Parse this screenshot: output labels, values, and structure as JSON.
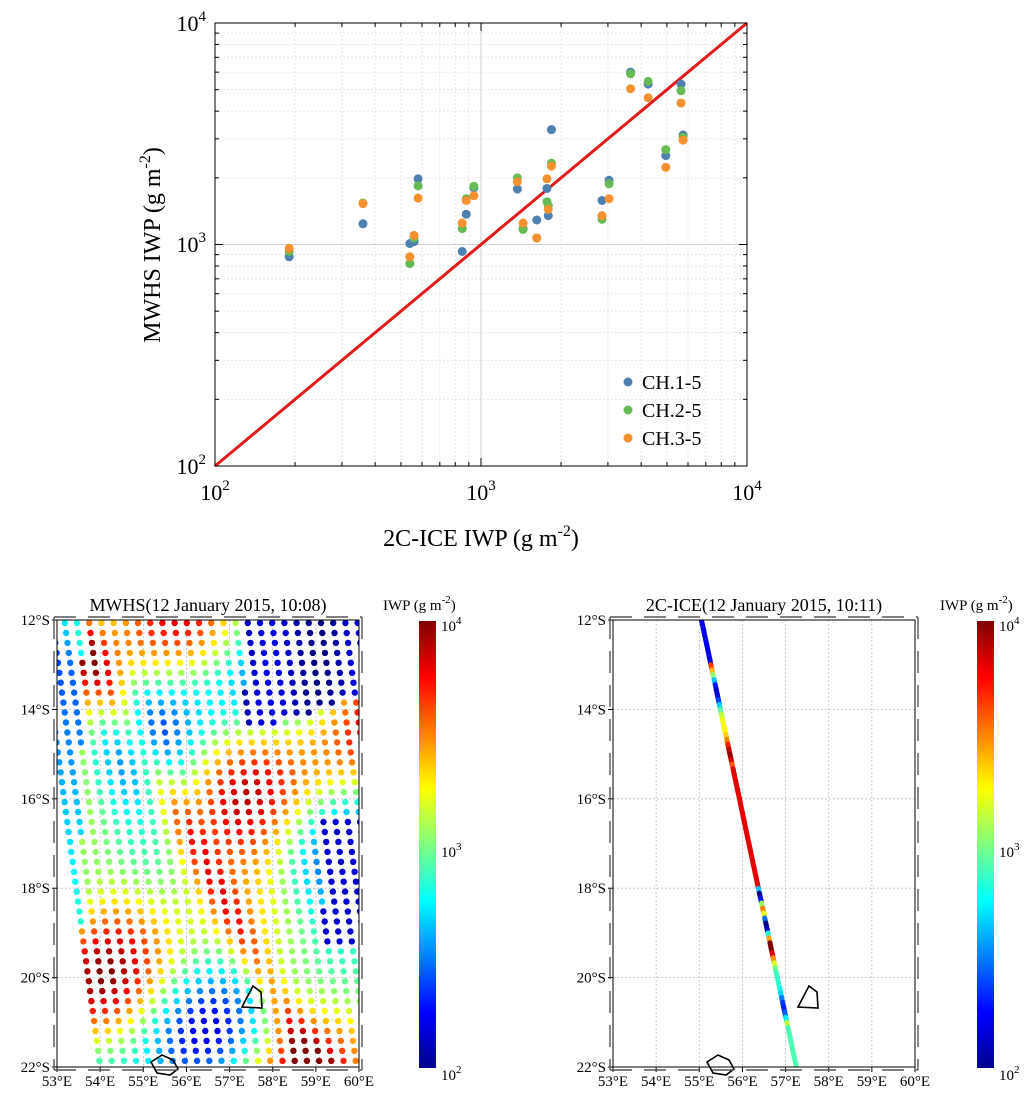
{
  "chart_data": [
    {
      "type": "scatter",
      "xlabel": "2C-ICE IWP (g m",
      "xlabel_sup": "-2",
      "xlabel_end": ")",
      "ylabel": "MWHS IWP (g m",
      "ylabel_sup": "-2",
      "ylabel_end": ")",
      "xscale": "log",
      "yscale": "log",
      "xlim": [
        100,
        10000
      ],
      "ylim": [
        100,
        10000
      ],
      "xticks": [
        {
          "base": "10",
          "exp": "2"
        },
        {
          "base": "10",
          "exp": "3"
        },
        {
          "base": "10",
          "exp": "4"
        }
      ],
      "yticks": [
        {
          "base": "10",
          "exp": "2"
        },
        {
          "base": "10",
          "exp": "3"
        },
        {
          "base": "10",
          "exp": "4"
        }
      ],
      "grid": true,
      "legend_position": "bottom-right",
      "reference_line": {
        "from": [
          100,
          100
        ],
        "to": [
          10000,
          10000
        ],
        "color": "#e41a1c"
      },
      "series": [
        {
          "name": "CH.1-5",
          "color": "#4f81b0",
          "points": [
            [
              190,
              880
            ],
            [
              360,
              1240
            ],
            [
              540,
              1010
            ],
            [
              560,
              1030
            ],
            [
              580,
              1980
            ],
            [
              850,
              930
            ],
            [
              880,
              1370
            ],
            [
              940,
              1800
            ],
            [
              1370,
              1780
            ],
            [
              1440,
              1180
            ],
            [
              1620,
              1290
            ],
            [
              1770,
              1790
            ],
            [
              1790,
              1350
            ],
            [
              1840,
              3300
            ],
            [
              2850,
              1580
            ],
            [
              3030,
              1950
            ],
            [
              3650,
              6000
            ],
            [
              4250,
              5300
            ],
            [
              4950,
              2520
            ],
            [
              5650,
              5300
            ],
            [
              5750,
              3120
            ]
          ]
        },
        {
          "name": "CH.2-5",
          "color": "#66bb55",
          "points": [
            [
              190,
              930
            ],
            [
              360,
              1540
            ],
            [
              540,
              820
            ],
            [
              560,
              1070
            ],
            [
              580,
              1840
            ],
            [
              850,
              1180
            ],
            [
              880,
              1610
            ],
            [
              940,
              1830
            ],
            [
              1370,
              2000
            ],
            [
              1440,
              1170
            ],
            [
              1620,
              1070
            ],
            [
              1770,
              1560
            ],
            [
              1790,
              1500
            ],
            [
              1840,
              2330
            ],
            [
              2850,
              1300
            ],
            [
              3030,
              1880
            ],
            [
              3650,
              5900
            ],
            [
              4250,
              5450
            ],
            [
              4950,
              2680
            ],
            [
              5650,
              4950
            ],
            [
              5750,
              3050
            ]
          ]
        },
        {
          "name": "CH.3-5",
          "color": "#f5922f",
          "points": [
            [
              190,
              960
            ],
            [
              360,
              1530
            ],
            [
              540,
              880
            ],
            [
              560,
              1100
            ],
            [
              580,
              1620
            ],
            [
              850,
              1250
            ],
            [
              880,
              1580
            ],
            [
              940,
              1660
            ],
            [
              1370,
              1920
            ],
            [
              1440,
              1250
            ],
            [
              1620,
              1070
            ],
            [
              1770,
              1980
            ],
            [
              1790,
              1440
            ],
            [
              1840,
              2260
            ],
            [
              2850,
              1350
            ],
            [
              3030,
              1610
            ],
            [
              3650,
              5050
            ],
            [
              4250,
              4600
            ],
            [
              4950,
              2230
            ],
            [
              5650,
              4350
            ],
            [
              5750,
              2960
            ]
          ]
        }
      ]
    },
    {
      "type": "map",
      "title": "MWHS(12 January 2015, 10:08)",
      "xticks": [
        "53°E",
        "54°E",
        "55°E",
        "56°E",
        "57°E",
        "58°E",
        "59°E",
        "60°E"
      ],
      "yticks": [
        "12°S",
        "14°S",
        "16°S",
        "18°S",
        "20°S",
        "22°S"
      ],
      "lon_range": [
        53,
        60
      ],
      "lat_range": [
        -22,
        -12
      ],
      "colorbar": {
        "label": "IWP (g m",
        "label_sup": "-2",
        "label_end": ")",
        "scale": "log",
        "range": [
          100,
          10000
        ],
        "ticks": [
          {
            "base": "10",
            "exp": "2"
          },
          {
            "base": "10",
            "exp": "3"
          },
          {
            "base": "10",
            "exp": "4"
          }
        ]
      }
    },
    {
      "type": "map",
      "title": "2C-ICE(12 January 2015, 10:11)",
      "xticks": [
        "53°E",
        "54°E",
        "55°E",
        "56°E",
        "57°E",
        "58°E",
        "59°E",
        "60°E"
      ],
      "yticks": [
        "12°S",
        "14°S",
        "16°S",
        "18°S",
        "20°S",
        "22°S"
      ],
      "lon_range": [
        53,
        60
      ],
      "lat_range": [
        -22,
        -12
      ],
      "track": {
        "start": [
          55.05,
          -12.0
        ],
        "end": [
          57.25,
          -22.0
        ]
      },
      "colorbar": {
        "label": "IWP (g m",
        "label_sup": "-2",
        "label_end": ")",
        "scale": "log",
        "range": [
          100,
          10000
        ],
        "ticks": [
          {
            "base": "10",
            "exp": "2"
          },
          {
            "base": "10",
            "exp": "3"
          },
          {
            "base": "10",
            "exp": "4"
          }
        ]
      }
    }
  ]
}
